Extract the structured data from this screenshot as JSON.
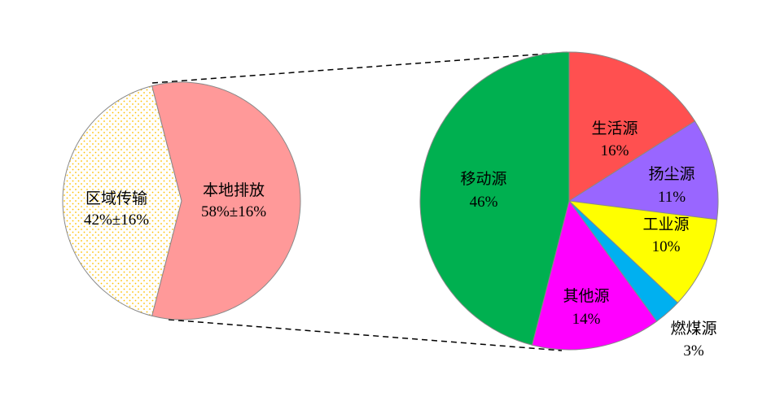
{
  "chart_data": [
    {
      "type": "pie",
      "categories": [
        "区域传输",
        "本地排放"
      ],
      "values": [
        42,
        58
      ],
      "value_labels": [
        "42%±16%",
        "58%±16%"
      ],
      "colors": [
        "#ffffff",
        "#ff9999"
      ],
      "patterns": [
        "yellow-dots",
        "solid"
      ],
      "pattern_color": "#ffc000"
    },
    {
      "type": "pie",
      "categories": [
        "生活源",
        "扬尘源",
        "工业源",
        "燃煤源",
        "其他源",
        "移动源"
      ],
      "values": [
        16,
        11,
        10,
        3,
        14,
        46
      ],
      "value_labels": [
        "16%",
        "11%",
        "10%",
        "3%",
        "14%",
        "46%"
      ],
      "colors": [
        "#ff5050",
        "#9966ff",
        "#ffff00",
        "#00b0f0",
        "#ff00ff",
        "#00b050"
      ],
      "start": "top",
      "direction": "clockwise"
    }
  ]
}
